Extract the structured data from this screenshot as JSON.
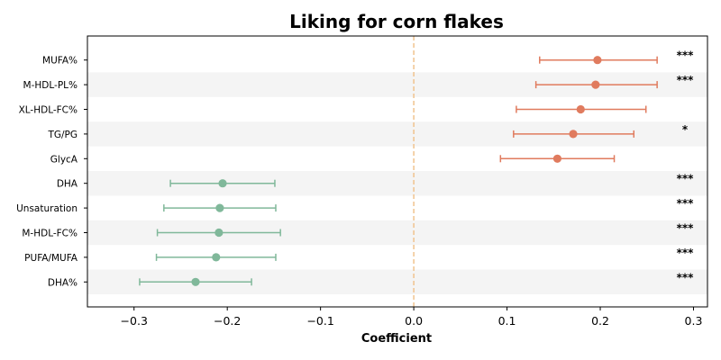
{
  "chart_data": {
    "type": "forest",
    "title": "Liking for corn flakes",
    "xlabel": "Coefficient",
    "xlim": [
      -0.35,
      0.315
    ],
    "xticks": [
      -0.3,
      -0.2,
      -0.1,
      0.0,
      0.1,
      0.2,
      0.3
    ],
    "xtick_labels": [
      "−0.3",
      "−0.2",
      "−0.1",
      "0.0",
      "0.1",
      "0.2",
      "0.3"
    ],
    "reference_line": 0.0,
    "colors": {
      "positive": "#e07b5e",
      "negative": "#80b89a",
      "reference": "#f0c38e",
      "band": "#f4f4f4"
    },
    "rows": [
      {
        "label": "MUFA%",
        "estimate": 0.197,
        "ci_low": 0.135,
        "ci_high": 0.261,
        "sig": "***"
      },
      {
        "label": "M-HDL-PL%",
        "estimate": 0.195,
        "ci_low": 0.131,
        "ci_high": 0.261,
        "sig": "***"
      },
      {
        "label": "XL-HDL-FC%",
        "estimate": 0.179,
        "ci_low": 0.11,
        "ci_high": 0.249,
        "sig": ""
      },
      {
        "label": "TG/PG",
        "estimate": 0.171,
        "ci_low": 0.107,
        "ci_high": 0.236,
        "sig": "*"
      },
      {
        "label": "GlycA",
        "estimate": 0.154,
        "ci_low": 0.093,
        "ci_high": 0.215,
        "sig": ""
      },
      {
        "label": "DHA",
        "estimate": -0.205,
        "ci_low": -0.261,
        "ci_high": -0.149,
        "sig": "***"
      },
      {
        "label": "Unsaturation",
        "estimate": -0.208,
        "ci_low": -0.268,
        "ci_high": -0.148,
        "sig": "***"
      },
      {
        "label": "M-HDL-FC%",
        "estimate": -0.209,
        "ci_low": -0.275,
        "ci_high": -0.143,
        "sig": "***"
      },
      {
        "label": "PUFA/MUFA",
        "estimate": -0.212,
        "ci_low": -0.276,
        "ci_high": -0.148,
        "sig": "***"
      },
      {
        "label": "DHA%",
        "estimate": -0.234,
        "ci_low": -0.294,
        "ci_high": -0.174,
        "sig": "***"
      }
    ]
  }
}
